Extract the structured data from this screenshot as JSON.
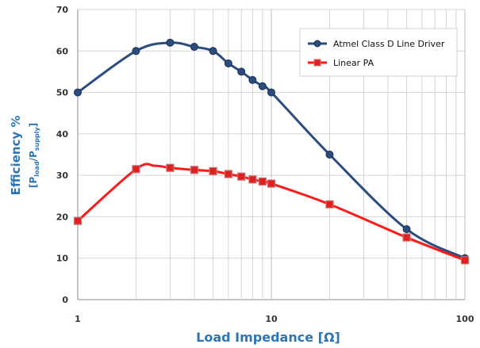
{
  "chart_data": {
    "type": "line",
    "xscale": "log",
    "xlim": [
      1,
      100
    ],
    "ylim": [
      0,
      70
    ],
    "yticks": [
      0,
      10,
      20,
      30,
      40,
      50,
      60,
      70
    ],
    "xticks": [
      1,
      10,
      100
    ],
    "xtick_labels": [
      "1",
      "10",
      "100"
    ],
    "xlabel": "Load Impedance [Ω]",
    "ylabel_line1": "Efficiency %",
    "ylabel_line2": {
      "open": "[P",
      "sub1": "load",
      "slash": "/P",
      "sub2": "supply",
      "close": "]"
    },
    "grid": true,
    "legend_position": "top-right",
    "series": [
      {
        "name": "Atmel Class D Line Driver",
        "color": "#2b4c7e",
        "marker": "circle",
        "x": [
          1,
          2,
          3,
          4,
          5,
          6,
          7,
          8,
          9,
          10,
          20,
          50,
          100
        ],
        "y": [
          50,
          60,
          62,
          61,
          60,
          57,
          55,
          53,
          51.5,
          50,
          35,
          17,
          10
        ]
      },
      {
        "name": "Linear PA",
        "color": "#ff1a1a",
        "marker": "square",
        "x": [
          1,
          2,
          2.5,
          3,
          4,
          5,
          6,
          7,
          8,
          9,
          10,
          20,
          50,
          100
        ],
        "y": [
          19,
          31.5,
          32.3,
          31.8,
          31.3,
          31,
          30.3,
          29.7,
          29,
          28.5,
          28,
          23,
          15,
          9.5
        ]
      }
    ]
  }
}
